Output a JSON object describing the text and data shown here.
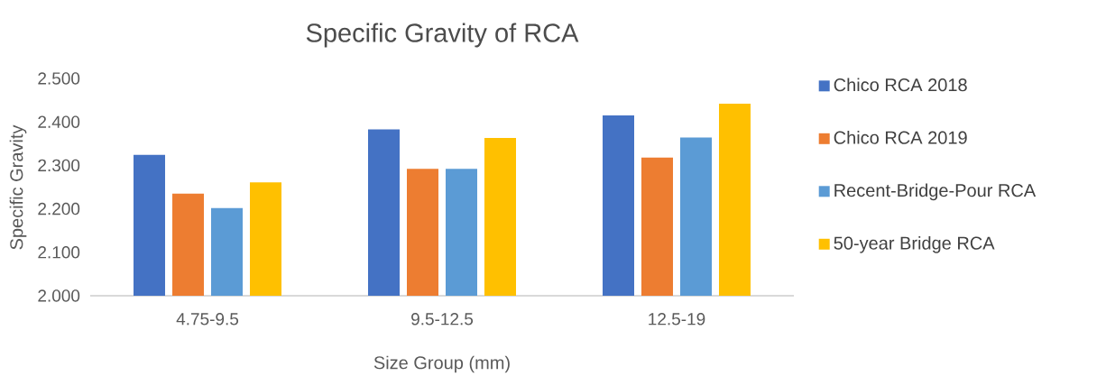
{
  "chart_data": {
    "type": "bar",
    "title": "Specific Gravity of RCA",
    "xlabel": "Size Group (mm)",
    "ylabel": "Specific Gravity",
    "categories": [
      "4.75-9.5",
      "9.5-12.5",
      "12.5-19"
    ],
    "series": [
      {
        "name": "Chico RCA 2018",
        "color": "#4472c4",
        "values": [
          2.324,
          2.383,
          2.415
        ]
      },
      {
        "name": "Chico RCA 2019",
        "color": "#ed7d31",
        "values": [
          2.235,
          2.292,
          2.318
        ]
      },
      {
        "name": "Recent-Bridge-Pour RCA",
        "color": "#5b9bd5",
        "values": [
          2.202,
          2.292,
          2.364
        ]
      },
      {
        "name": "50-year Bridge RCA",
        "color": "#ffc000",
        "values": [
          2.261,
          2.363,
          2.442
        ]
      }
    ],
    "ylim": [
      2.0,
      2.5
    ],
    "yticks": [
      {
        "value": 2.0,
        "label": "2.000"
      },
      {
        "value": 2.1,
        "label": "2.100"
      },
      {
        "value": 2.2,
        "label": "2.200"
      },
      {
        "value": 2.3,
        "label": "2.300"
      },
      {
        "value": 2.4,
        "label": "2.400"
      },
      {
        "value": 2.5,
        "label": "2.500"
      }
    ],
    "grid": false,
    "legend": "right"
  }
}
